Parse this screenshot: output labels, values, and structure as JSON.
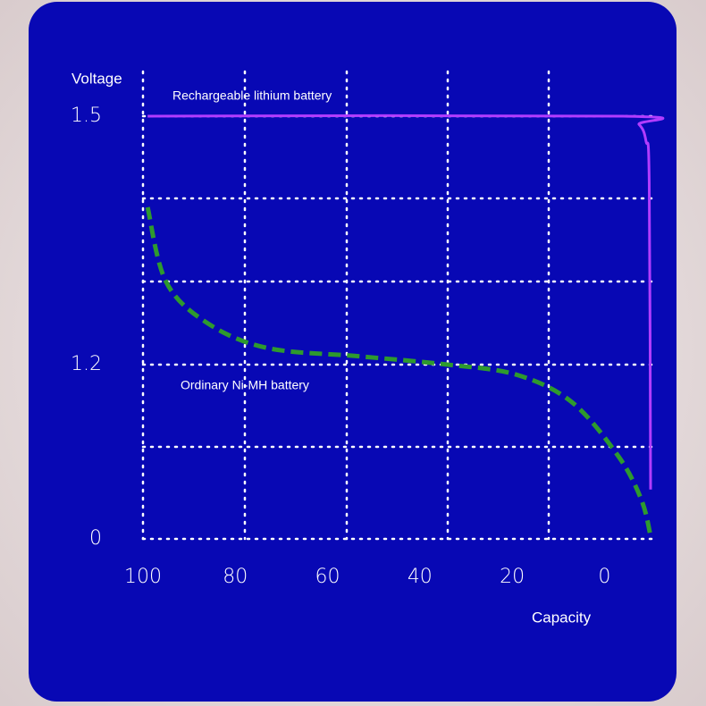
{
  "chart_data": {
    "type": "line",
    "x_label": "Capacity",
    "y_label": "Voltage",
    "xlim": [
      100,
      -10
    ],
    "xticks": [
      100,
      80,
      60,
      40,
      20,
      0
    ],
    "ylim": [
      0,
      1.5
    ],
    "yticks": [
      0,
      1.2,
      1.5
    ],
    "grid": true,
    "series": [
      {
        "name": "Rechargeable lithium battery",
        "color": "#b23cff",
        "style": "solid",
        "x": [
          99,
          -4,
          -7.5,
          -9,
          -9.7,
          -10
        ],
        "values": [
          1.5,
          1.5,
          1.49,
          1.47,
          1.42,
          0.34
        ]
      },
      {
        "name": "Ordinary Ni-MH battery",
        "color": "#2e9a2e",
        "style": "dashed",
        "x": [
          99,
          95,
          86,
          73,
          53,
          34,
          19,
          7,
          -3,
          -8,
          -10
        ],
        "values": [
          1.39,
          1.3,
          1.25,
          1.22,
          1.21,
          1.2,
          1.13,
          0.94,
          0.57,
          0.27,
          0.02
        ]
      }
    ]
  }
}
